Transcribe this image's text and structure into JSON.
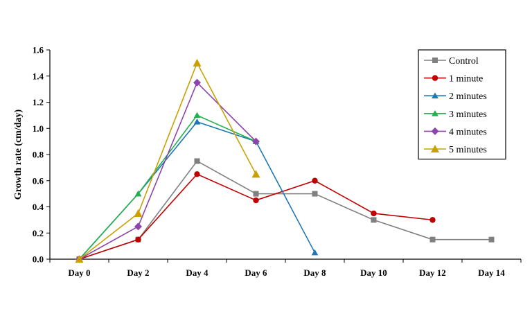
{
  "chart_data": {
    "type": "line",
    "title": "",
    "xlabel": "",
    "ylabel": "Growth rate (cm/day)",
    "categories": [
      "Day 0",
      "Day 2",
      "Day 4",
      "Day 6",
      "Day 8",
      "Day 10",
      "Day 12",
      "Day 14"
    ],
    "ylim": [
      0,
      1.6
    ],
    "yticks": [
      "0.0",
      "0.2",
      "0.4",
      "0.6",
      "0.8",
      "1.0",
      "1.2",
      "1.4",
      "1.6"
    ],
    "grid": false,
    "legend_position": "top-right",
    "series": [
      {
        "name": "Control",
        "color": "#808080",
        "marker": "square",
        "values": [
          0,
          0.15,
          0.75,
          0.5,
          0.5,
          0.3,
          0.15,
          0.15
        ]
      },
      {
        "name": "1 minute",
        "color": "#c00000",
        "marker": "circle",
        "values": [
          0,
          0.15,
          0.65,
          0.45,
          0.6,
          0.35,
          0.3,
          null
        ]
      },
      {
        "name": "2 minutes",
        "color": "#1f77b4",
        "marker": "triangle",
        "values": [
          0,
          0.5,
          1.05,
          0.9,
          0.05,
          null,
          null,
          null
        ]
      },
      {
        "name": "3 minutes",
        "color": "#22b14c",
        "marker": "triangle",
        "values": [
          0,
          0.5,
          1.1,
          0.9,
          null,
          null,
          null,
          null
        ]
      },
      {
        "name": "4 minutes",
        "color": "#8e44ad",
        "marker": "diamond",
        "values": [
          0,
          0.25,
          1.35,
          0.9,
          null,
          null,
          null,
          null
        ]
      },
      {
        "name": "5 minutes",
        "color": "#c9a000",
        "marker": "triangle-large",
        "values": [
          0,
          0.35,
          1.5,
          0.65,
          null,
          null,
          null,
          null
        ]
      }
    ]
  }
}
